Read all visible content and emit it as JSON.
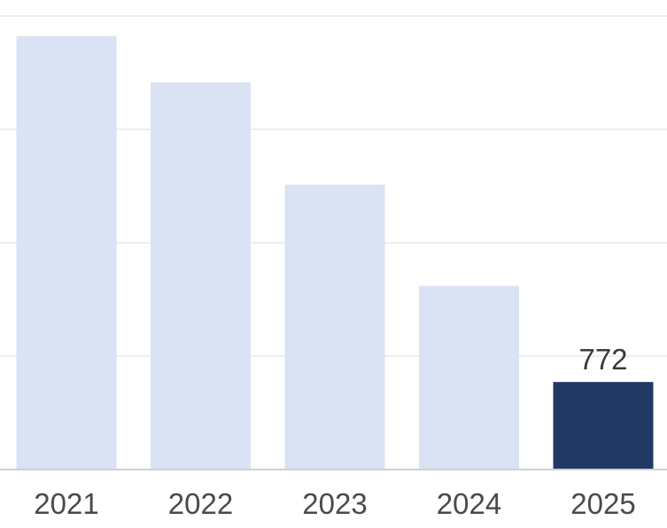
{
  "chart_data": {
    "type": "bar",
    "categories": [
      "2021",
      "2022",
      "2023",
      "2024",
      "2025"
    ],
    "values": [
      3822,
      3413,
      2512,
      1620,
      772
    ],
    "data_labels": [
      null,
      null,
      null,
      null,
      "772"
    ],
    "ylim": [
      0,
      4000
    ],
    "y_gridlines": [
      1000,
      2000,
      3000,
      4000
    ],
    "grid": true,
    "legend": "none",
    "title": "",
    "xlabel": "",
    "ylabel": "",
    "colors": {
      "default_bar": "#dae3f3",
      "highlight_bar": "#203864"
    },
    "highlight_index": 4
  }
}
